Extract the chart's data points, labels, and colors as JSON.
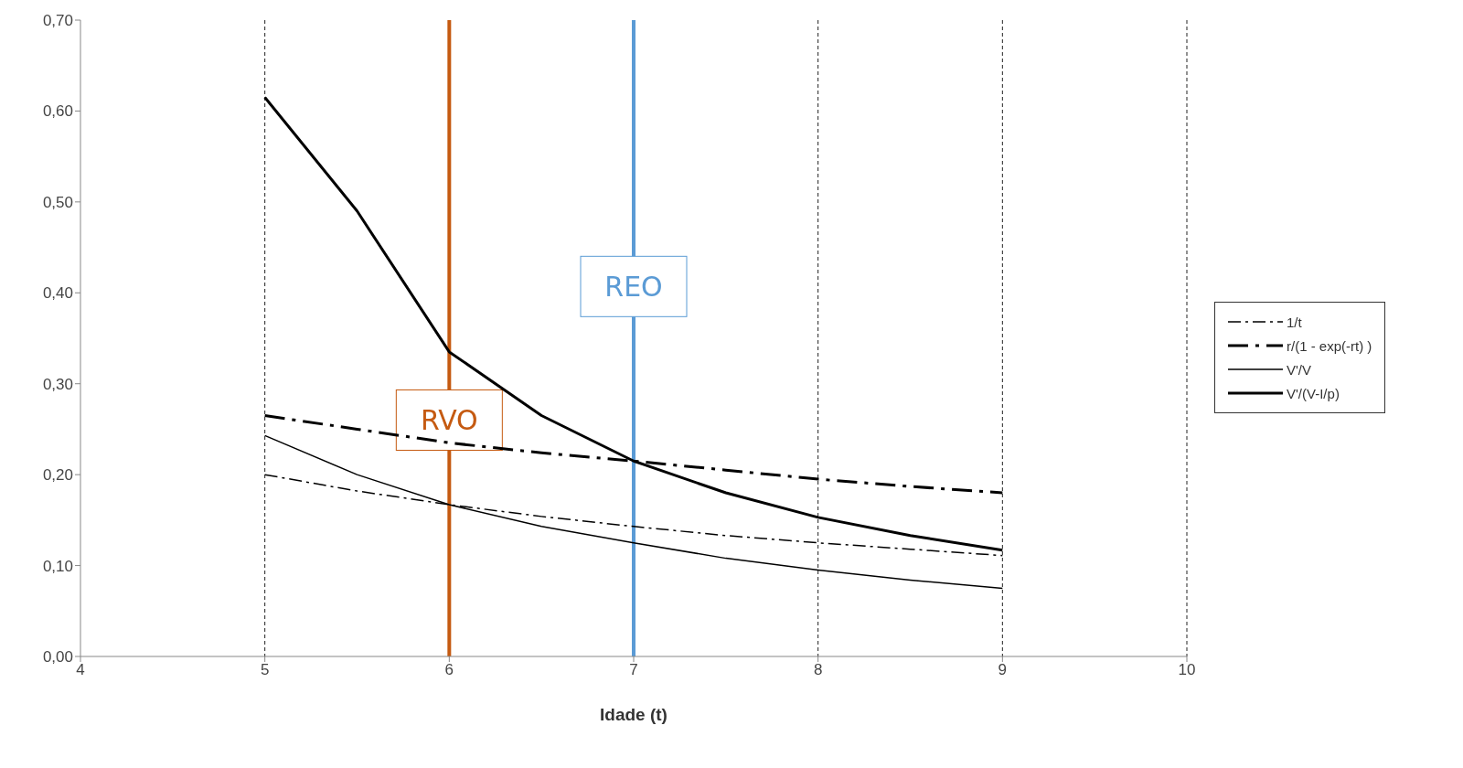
{
  "chart_data": {
    "type": "line",
    "xlabel": "Idade (t)",
    "x": [
      5,
      5.5,
      6,
      6.5,
      7,
      7.5,
      8,
      8.5,
      9
    ],
    "series": [
      {
        "name": "1/t",
        "color": "#000000",
        "line_style": "dashed",
        "values": [
          0.2,
          0.182,
          0.167,
          0.154,
          0.143,
          0.133,
          0.125,
          0.118,
          0.111
        ]
      },
      {
        "name": "r/(1 - exp(-rt) )",
        "color": "#000000",
        "line_style": "dashed",
        "values": [
          0.265,
          0.25,
          0.235,
          0.224,
          0.215,
          0.205,
          0.195,
          0.187,
          0.18
        ]
      },
      {
        "name": "V'/V",
        "color": "#000000",
        "line_style": "solid",
        "values": [
          0.243,
          0.2,
          0.167,
          0.143,
          0.125,
          0.108,
          0.095,
          0.084,
          0.075
        ]
      },
      {
        "name": "V'/(V-I/p)",
        "color": "#000000",
        "line_style": "solid",
        "values": [
          0.615,
          0.49,
          0.335,
          0.265,
          0.215,
          0.18,
          0.153,
          0.133,
          0.117
        ]
      }
    ],
    "xlim": [
      4,
      10
    ],
    "xticks": [
      4,
      5,
      6,
      7,
      8,
      9,
      10
    ],
    "ylim": [
      0,
      0.7
    ],
    "yticks": [
      {
        "value": 0,
        "label": "0,00"
      },
      {
        "value": 0.1,
        "label": "0,10"
      },
      {
        "value": 0.2,
        "label": "0,20"
      },
      {
        "value": 0.3,
        "label": "0,30"
      },
      {
        "value": 0.4,
        "label": "0,40"
      },
      {
        "value": 0.5,
        "label": "0,50"
      },
      {
        "value": 0.6,
        "label": "0,60"
      },
      {
        "value": 0.7,
        "label": "0,70"
      }
    ],
    "ref_lines": [
      {
        "axis": "x",
        "value": 6,
        "label": "RVO",
        "color": "#c55a11"
      },
      {
        "axis": "x",
        "value": 7,
        "label": "REO",
        "color": "#5b9bd5"
      }
    ],
    "grid": "x",
    "legend": "right",
    "marker": "none"
  }
}
